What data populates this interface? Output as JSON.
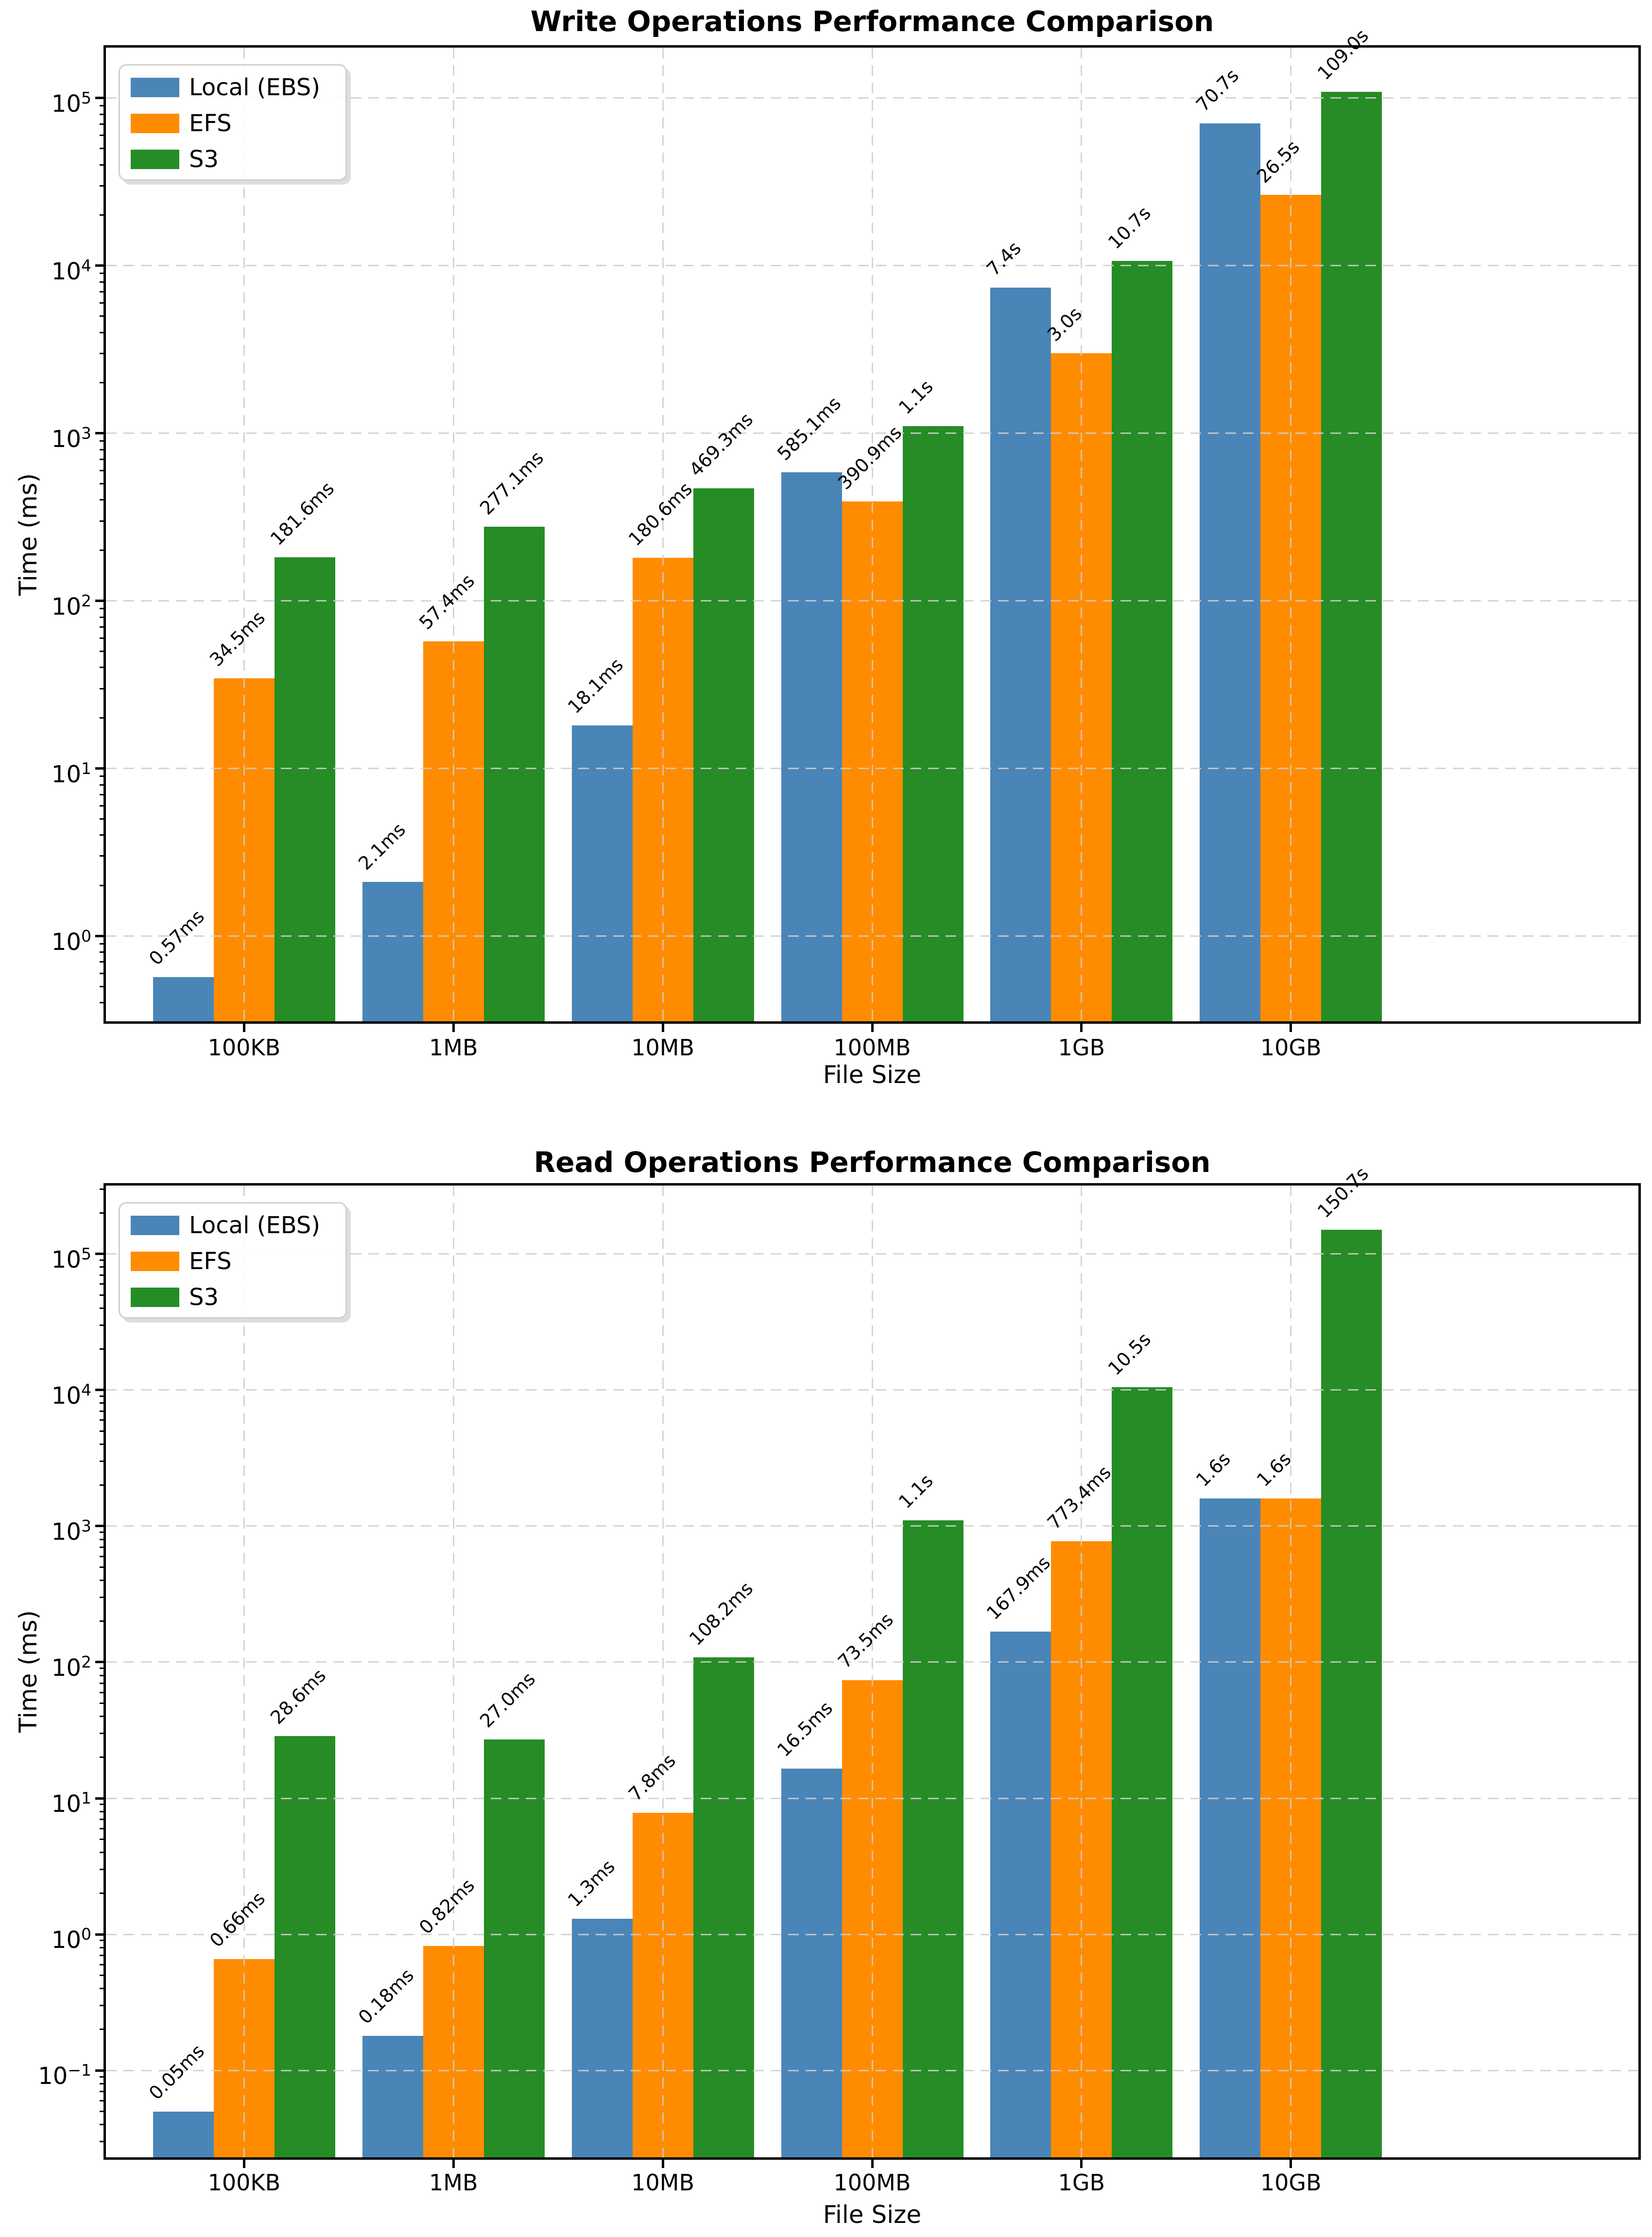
{
  "figure": {
    "background_color": "#ffffff",
    "text_color": "#000000",
    "grid_color": "#cecece"
  },
  "legend": {
    "location": "upper left",
    "items": [
      {
        "label": "Local (EBS)",
        "color": "#4a85b7"
      },
      {
        "label": "EFS",
        "color": "#ff8c00"
      },
      {
        "label": "S3",
        "color": "#268c26"
      }
    ]
  },
  "chart_data": [
    {
      "type": "bar",
      "title": "Write Operations Performance Comparison",
      "xlabel": "File Size",
      "ylabel": "Time (ms)",
      "yscale": "log",
      "grid": "dashed",
      "legend_location": "upper left",
      "ylim_ms": [
        0.31,
        200000
      ],
      "ytick_exponents": [
        0,
        1,
        2,
        3,
        4,
        5
      ],
      "ytick_labels": [
        "10⁰",
        "10¹",
        "10²",
        "10³",
        "10⁴",
        "10⁵"
      ],
      "categories": [
        "100KB",
        "1MB",
        "10MB",
        "100MB",
        "1GB",
        "10GB"
      ],
      "series": [
        {
          "name": "Local (EBS)",
          "color": "#4a85b7",
          "values_ms": [
            0.57,
            2.1,
            18.1,
            585.1,
            7400,
            70700
          ],
          "bar_labels": [
            "0.57ms",
            "2.1ms",
            "18.1ms",
            "585.1ms",
            "7.4s",
            "70.7s"
          ]
        },
        {
          "name": "EFS",
          "color": "#ff8c00",
          "values_ms": [
            34.5,
            57.4,
            180.6,
            390.9,
            3000,
            26500
          ],
          "bar_labels": [
            "34.5ms",
            "57.4ms",
            "180.6ms",
            "390.9ms",
            "3.0s",
            "26.5s"
          ]
        },
        {
          "name": "S3",
          "color": "#268c26",
          "values_ms": [
            181.6,
            277.1,
            469.3,
            1100,
            10700,
            109000
          ],
          "bar_labels": [
            "181.6ms",
            "277.1ms",
            "469.3ms",
            "1.1s",
            "10.7s",
            "109.0s"
          ]
        }
      ]
    },
    {
      "type": "bar",
      "title": "Read Operations Performance Comparison",
      "xlabel": "File Size",
      "ylabel": "Time (ms)",
      "yscale": "log",
      "grid": "dashed",
      "legend_location": "upper left",
      "ylim_ms": [
        0.023,
        318000
      ],
      "ytick_exponents": [
        -1,
        0,
        1,
        2,
        3,
        4,
        5
      ],
      "ytick_labels": [
        "10⁻¹",
        "10⁰",
        "10¹",
        "10²",
        "10³",
        "10⁴",
        "10⁵"
      ],
      "categories": [
        "100KB",
        "1MB",
        "10MB",
        "100MB",
        "1GB",
        "10GB"
      ],
      "series": [
        {
          "name": "Local (EBS)",
          "color": "#4a85b7",
          "values_ms": [
            0.05,
            0.18,
            1.3,
            16.5,
            167.9,
            1600
          ],
          "bar_labels": [
            "0.05ms",
            "0.18ms",
            "1.3ms",
            "16.5ms",
            "167.9ms",
            "1.6s"
          ]
        },
        {
          "name": "EFS",
          "color": "#ff8c00",
          "values_ms": [
            0.66,
            0.82,
            7.8,
            73.5,
            773.4,
            1600
          ],
          "bar_labels": [
            "0.66ms",
            "0.82ms",
            "7.8ms",
            "73.5ms",
            "773.4ms",
            "1.6s"
          ]
        },
        {
          "name": "S3",
          "color": "#268c26",
          "values_ms": [
            28.6,
            27.0,
            108.2,
            1100,
            10500,
            150700
          ],
          "bar_labels": [
            "28.6ms",
            "27.0ms",
            "108.2ms",
            "1.1s",
            "10.5s",
            "150.7s"
          ]
        }
      ]
    }
  ]
}
